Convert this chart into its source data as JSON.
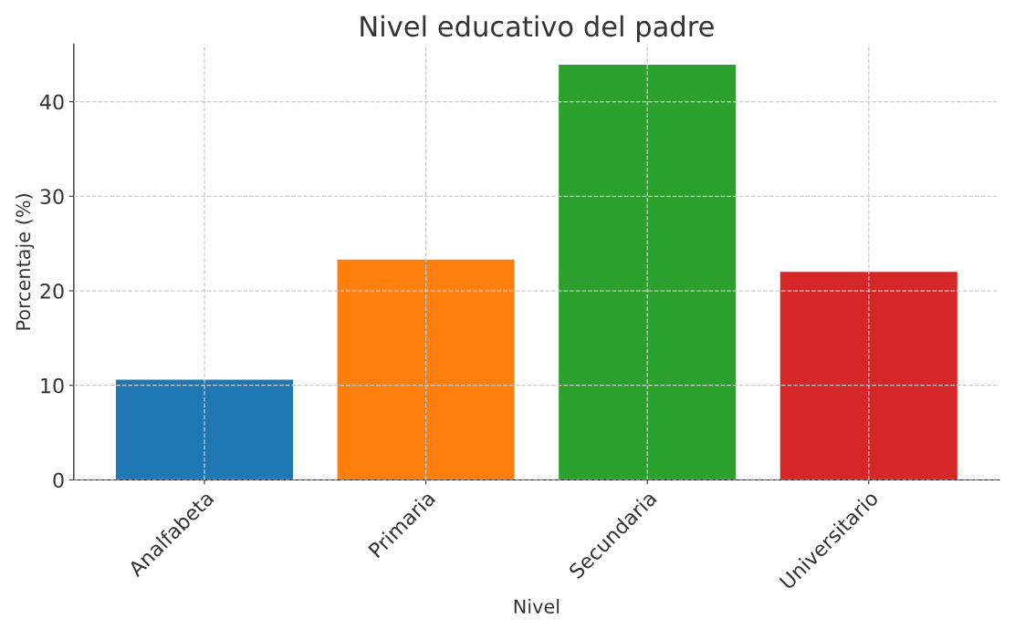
{
  "chart_data": {
    "type": "bar",
    "title": "Nivel educativo del padre",
    "xlabel": "Nivel",
    "ylabel": "Porcentaje (%)",
    "categories": [
      "Analfabeta",
      "Primaria",
      "Secundaria",
      "Universitario"
    ],
    "values": [
      10.6,
      23.3,
      43.9,
      22.0
    ],
    "colors": [
      "#1f77b4",
      "#ff7f0e",
      "#2ca02c",
      "#d62728"
    ],
    "ylim": [
      0,
      46.1
    ],
    "yticks": [
      0,
      10,
      20,
      30,
      40
    ],
    "grid": true
  }
}
